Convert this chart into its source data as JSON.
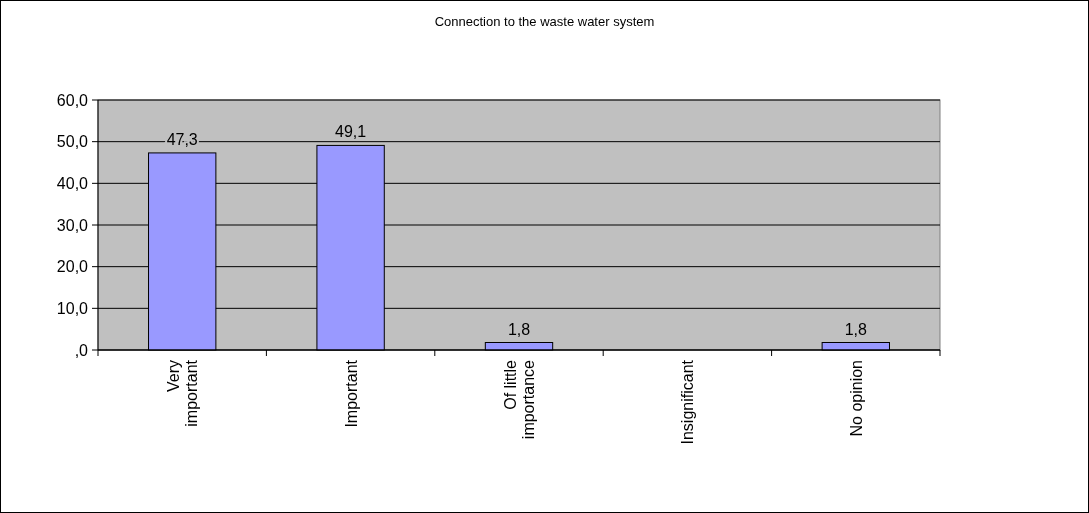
{
  "chart_data": {
    "type": "bar",
    "title": "Connection to the waste water system",
    "categories": [
      "Very important",
      "Important",
      "Of little importance",
      "Insignificant",
      "No opinion"
    ],
    "values": [
      47.3,
      49.1,
      1.8,
      null,
      1.8
    ],
    "value_labels": [
      "47,3",
      "49,1",
      "1,8",
      null,
      "1,8"
    ],
    "color": "#9999ff",
    "ylim": [
      0,
      60
    ],
    "yticks": [
      {
        "value": 0,
        "label": ",0"
      },
      {
        "value": 10,
        "label": "10,0"
      },
      {
        "value": 20,
        "label": "20,0"
      },
      {
        "value": 30,
        "label": "30,0"
      },
      {
        "value": 40,
        "label": "40,0"
      },
      {
        "value": 50,
        "label": "50,0"
      },
      {
        "value": 60,
        "label": "60,0"
      }
    ],
    "grid": "y"
  }
}
